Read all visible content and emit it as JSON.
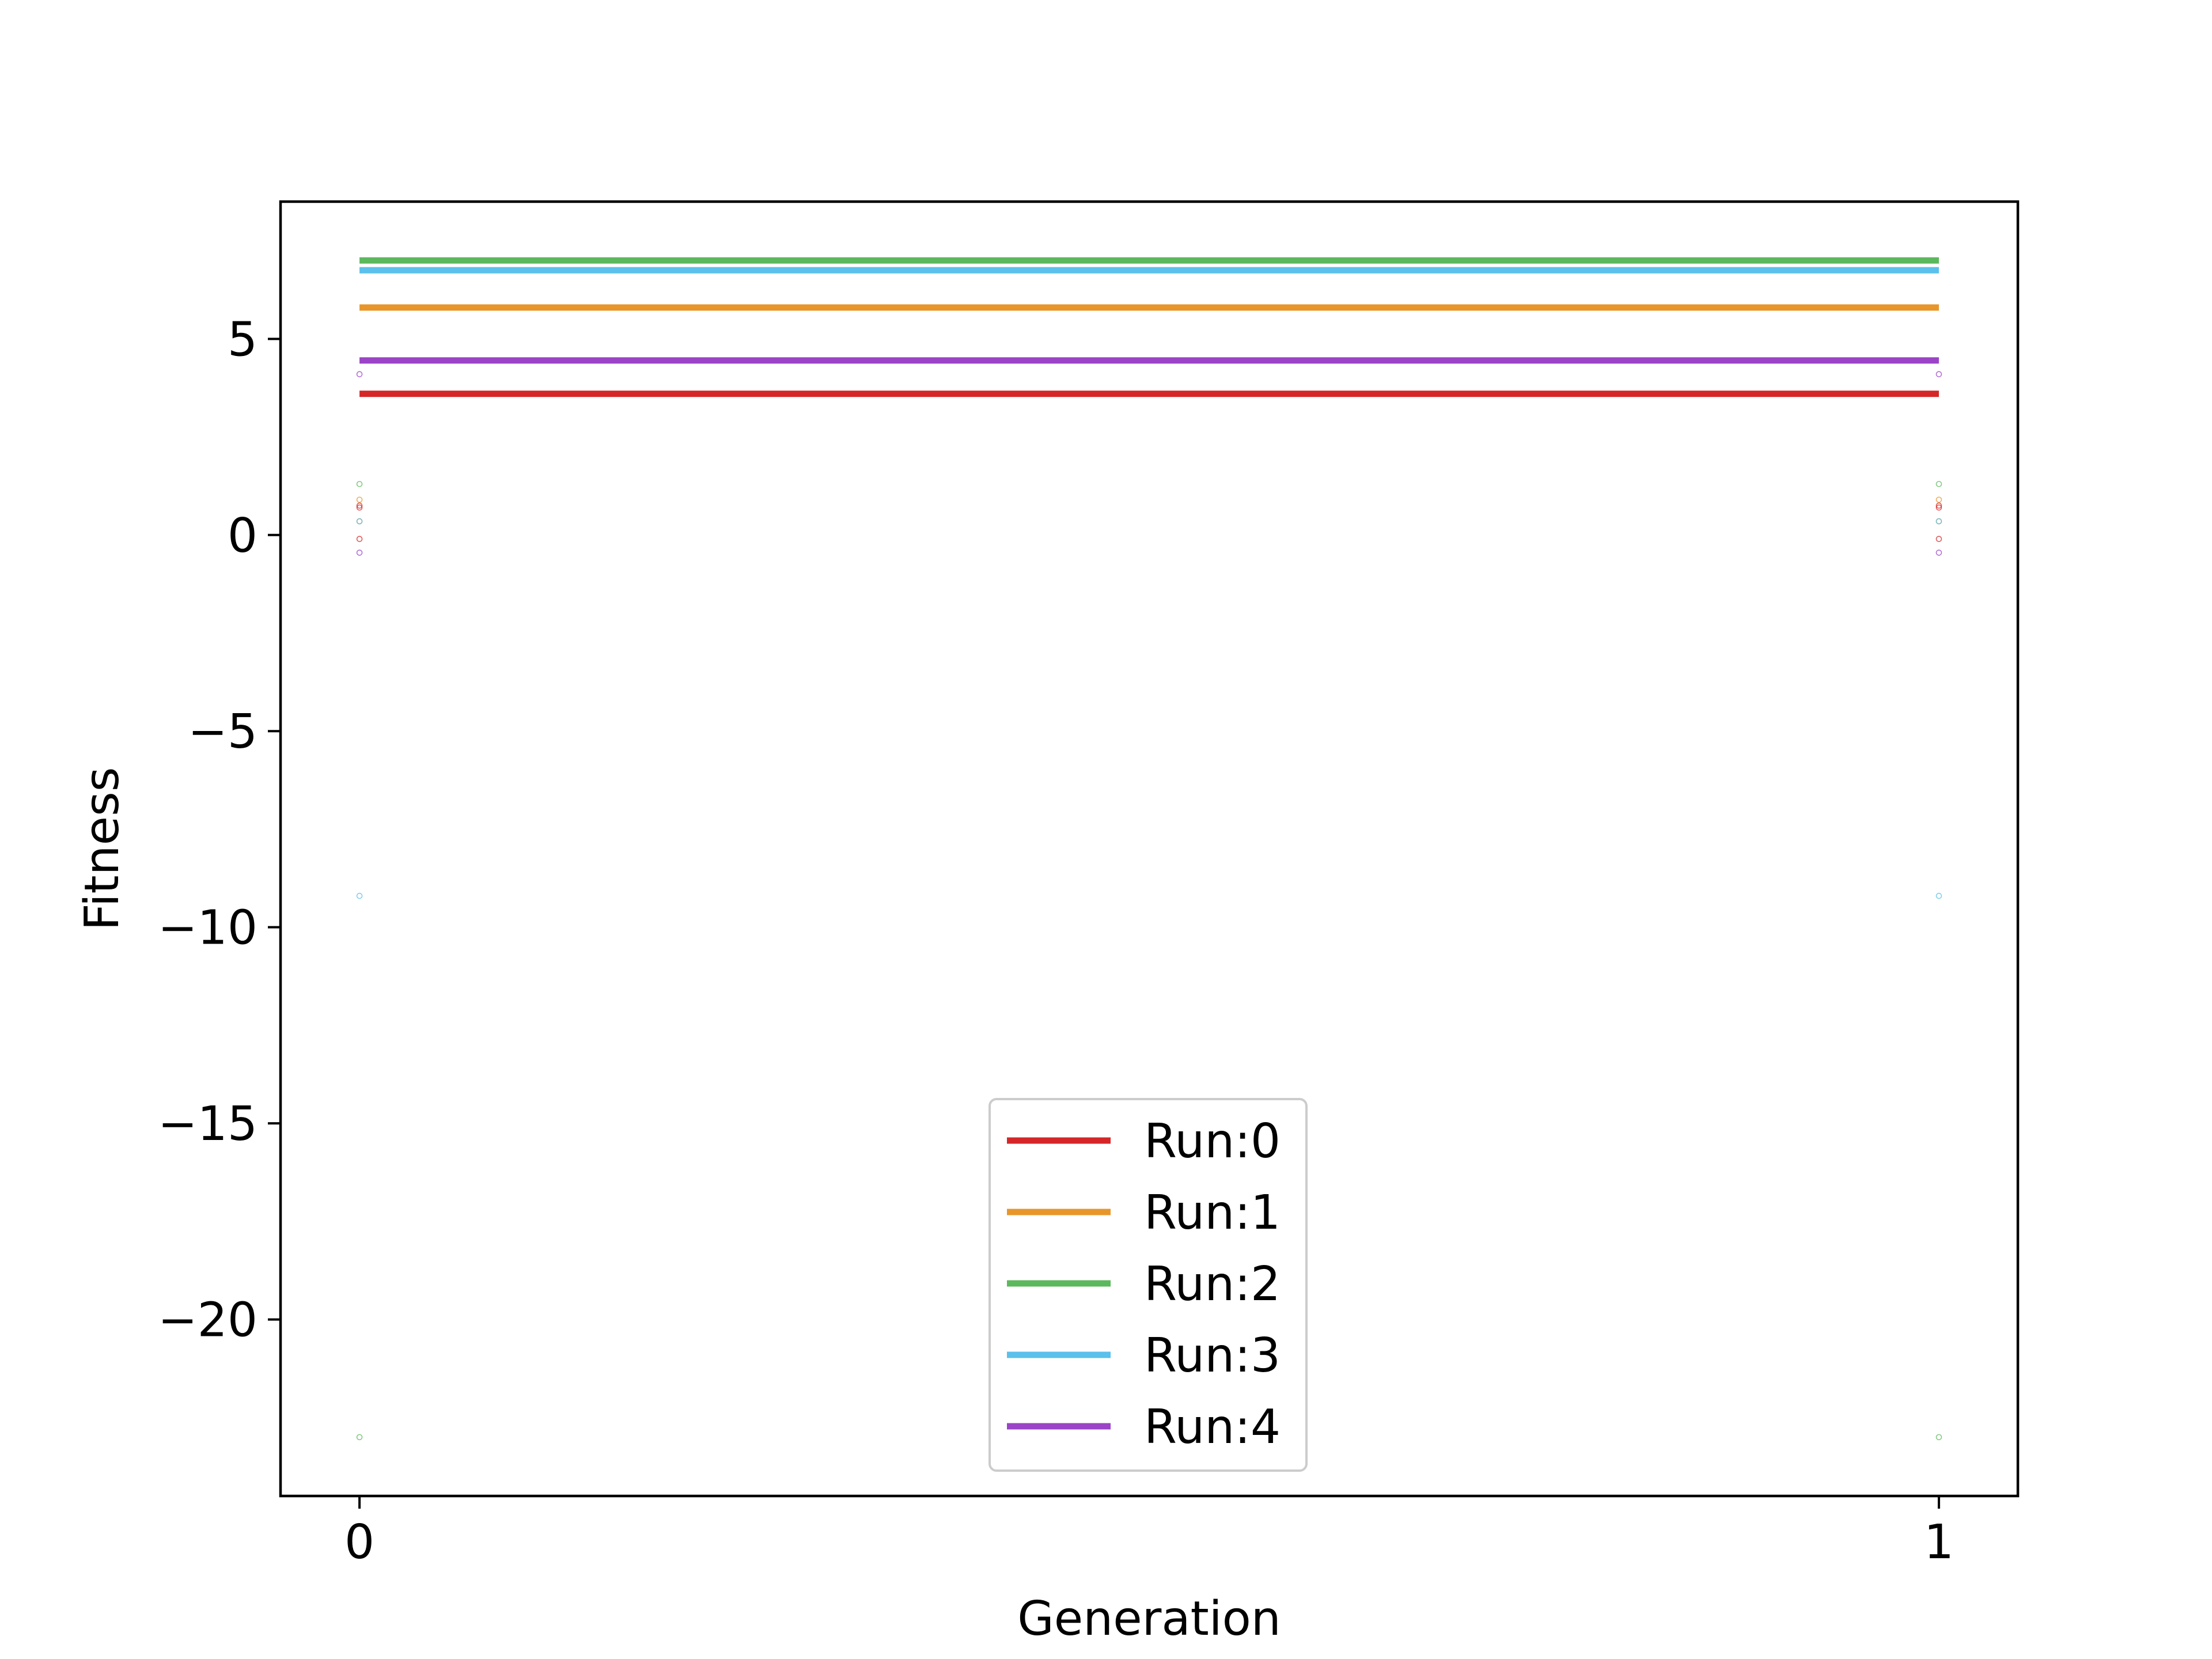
{
  "chart_data": {
    "type": "line",
    "title": "",
    "xlabel": "Generation",
    "ylabel": "Fitness",
    "x": [
      0,
      1
    ],
    "xlim": [
      -0.05,
      1.05
    ],
    "ylim": [
      -24.5,
      8.5
    ],
    "xticks": [
      0,
      1
    ],
    "xtick_labels": [
      "0",
      "1"
    ],
    "yticks": [
      5,
      0,
      -5,
      -10,
      -15,
      -20
    ],
    "ytick_labels": [
      "5",
      "0",
      "−5",
      "−10",
      "−15",
      "−20"
    ],
    "grid": false,
    "legend_position": "lower center",
    "series": [
      {
        "name": "Run:0",
        "color": "#d62728",
        "values": [
          3.6,
          3.6
        ],
        "points": [
          0.7,
          0.75,
          -0.1
        ]
      },
      {
        "name": "Run:1",
        "color": "#e8962a",
        "values": [
          5.8,
          5.8
        ],
        "points": [
          0.9,
          0.35
        ]
      },
      {
        "name": "Run:2",
        "color": "#5cb85c",
        "values": [
          7.0,
          7.0
        ],
        "points": [
          1.3,
          -23.0
        ]
      },
      {
        "name": "Run:3",
        "color": "#5bc0eb",
        "values": [
          6.75,
          6.75
        ],
        "points": [
          0.35,
          -9.2
        ]
      },
      {
        "name": "Run:4",
        "color": "#9b44c8",
        "values": [
          4.45,
          4.45
        ],
        "points": [
          4.1,
          -0.45
        ]
      }
    ]
  }
}
